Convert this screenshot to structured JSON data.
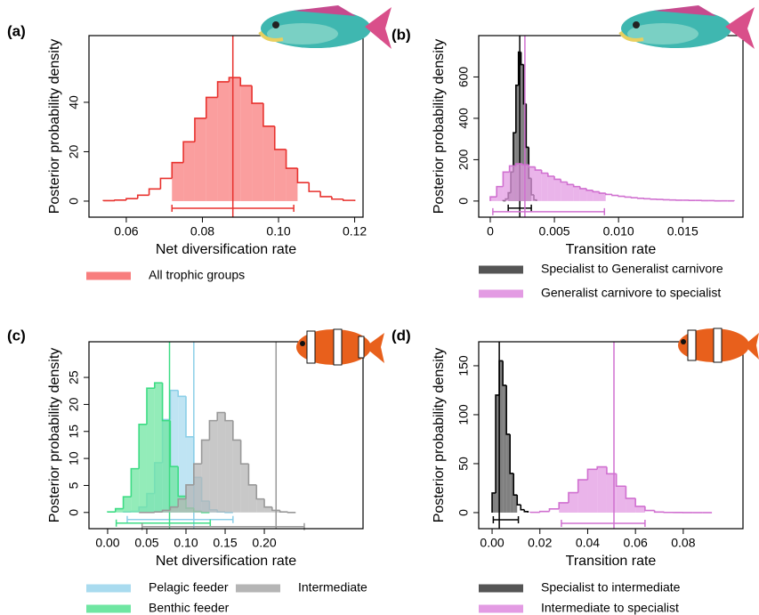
{
  "chart_data": [
    {
      "type": "histogram",
      "panel_label": "(a)",
      "xlabel": "Net diversification rate",
      "ylabel": "Posterior probability density",
      "xlim": [
        0.0502,
        0.1222
      ],
      "ylim": [
        -6.5,
        67
      ],
      "xticks": [
        0.06,
        0.08,
        {
          "value": 0.1,
          "label": "0.10"
        },
        0.12
      ],
      "yticks": [
        0,
        20,
        40
      ],
      "series": [
        {
          "name": "All trophic groups",
          "color": "#e8322e",
          "fill": "#f87e7e",
          "bins": [
            0.054,
            0.057,
            0.06,
            0.063,
            0.066,
            0.069,
            0.072,
            0.075,
            0.078,
            0.081,
            0.084,
            0.087,
            0.09,
            0.093,
            0.096,
            0.099,
            0.102,
            0.105,
            0.108,
            0.111,
            0.114,
            0.117,
            0.12
          ],
          "values": [
            0.2,
            0.4,
            1,
            2.4,
            4.9,
            9.2,
            15.6,
            24,
            33.5,
            42,
            48.3,
            50,
            46.7,
            39.6,
            30.3,
            20.9,
            13.3,
            7.5,
            3.9,
            1.8,
            0.8,
            0.3
          ],
          "interval": [
            0.072,
            0.104
          ],
          "estimate": 0.088
        }
      ]
    },
    {
      "type": "histogram",
      "panel_label": "(b)",
      "xlabel": "Transition rate",
      "ylabel": "Posterior probability density",
      "xlim": [
        -0.0009,
        0.0197
      ],
      "ylim": [
        -78,
        800
      ],
      "xticks": [
        0,
        0.005,
        {
          "value": 0.01,
          "label": "0.010"
        },
        0.015
      ],
      "yticks": [
        0,
        200,
        400,
        600
      ],
      "series": [
        {
          "name": "Specialist to Generalist carnivore",
          "color": "#000000",
          "fill": "#555555",
          "bins": [
            0.001,
            0.0012,
            0.0014,
            0.0016,
            0.0018,
            0.002,
            0.0022,
            0.0024,
            0.0026,
            0.0028,
            0.003,
            0.0032,
            0.0034,
            0.0036
          ],
          "values": [
            2,
            10,
            40,
            140,
            330,
            560,
            720,
            660,
            470,
            260,
            110,
            30,
            5
          ],
          "interval": [
            0.0014,
            0.0032
          ],
          "estimate": 0.0023
        },
        {
          "name": "Generalist carnivore to specialist",
          "color": "#d070d0",
          "fill": "#e39be3",
          "bins": [
            0,
            0.0005,
            0.001,
            0.0015,
            0.002,
            0.0025,
            0.003,
            0.0035,
            0.004,
            0.0045,
            0.005,
            0.0055,
            0.006,
            0.0065,
            0.007,
            0.0075,
            0.008,
            0.0085,
            0.009,
            0.0095,
            0.01,
            0.0105,
            0.011,
            0.0115,
            0.012,
            0.0125,
            0.013,
            0.0135,
            0.014,
            0.0145,
            0.015,
            0.0155,
            0.016,
            0.0165,
            0.017,
            0.0175,
            0.018,
            0.0185,
            0.019
          ],
          "values": [
            20,
            70,
            140,
            170,
            180,
            175,
            165,
            150,
            135,
            120,
            105,
            92,
            80,
            70,
            60,
            52,
            45,
            38,
            32,
            27,
            23,
            19,
            16,
            13,
            11,
            9,
            8,
            6,
            5,
            4,
            4,
            3,
            3,
            2,
            2,
            1,
            1,
            1
          ],
          "interval": [
            0.0002,
            0.0089
          ],
          "estimate": 0.0027
        }
      ]
    },
    {
      "type": "histogram",
      "panel_label": "(c)",
      "xlabel": "Net diversification rate",
      "ylabel": "Posterior probability density",
      "xlim": [
        -0.0238,
        0.326
      ],
      "ylim": [
        -3,
        31.6
      ],
      "xticks": [
        {
          "value": 0,
          "label": "0.00"
        },
        0.05,
        {
          "value": 0.1,
          "label": "0.10"
        },
        0.15,
        {
          "value": 0.2,
          "label": "0.20"
        }
      ],
      "yticks": [
        0,
        5,
        10,
        15,
        20,
        25
      ],
      "series": [
        {
          "name": "Pelagic feeder",
          "color": "#8ccfe8",
          "fill": "#a9dbef",
          "bins": [
            0.02,
            0.03,
            0.04,
            0.05,
            0.06,
            0.07,
            0.08,
            0.09,
            0.1,
            0.11,
            0.12,
            0.13,
            0.14,
            0.15,
            0.16
          ],
          "values": [
            0.1,
            0.2,
            1,
            3.5,
            9.2,
            17.2,
            22.6,
            21.5,
            14,
            6.5,
            2.1,
            0.5,
            0.1,
            0
          ],
          "interval": [
            0.025,
            0.16
          ],
          "estimate": 0.11
        },
        {
          "name": "Benthic feeder",
          "color": "#3ddc84",
          "fill": "#6fe6a2",
          "bins": [
            0,
            0.01,
            0.02,
            0.03,
            0.04,
            0.05,
            0.06,
            0.07,
            0.08,
            0.09,
            0.1,
            0.11,
            0.12,
            0.13
          ],
          "values": [
            0.1,
            0.7,
            2.9,
            8.1,
            16.3,
            23,
            24,
            17,
            8.5,
            3,
            0.8,
            0.2,
            0
          ],
          "interval": [
            0.011,
            0.131
          ],
          "estimate": 0.079
        },
        {
          "name": "Intermediate",
          "color": "#999999",
          "fill": "#b5b5b5",
          "bins": [
            0.04,
            0.05,
            0.06,
            0.07,
            0.08,
            0.09,
            0.1,
            0.11,
            0.12,
            0.13,
            0.14,
            0.15,
            0.16,
            0.17,
            0.18,
            0.19,
            0.2,
            0.21,
            0.22,
            0.23,
            0.24
          ],
          "values": [
            0,
            0,
            0.1,
            0.4,
            1,
            2.5,
            5.1,
            9,
            13.4,
            17,
            18.5,
            17,
            13.4,
            9,
            5.1,
            2.5,
            1,
            0.4,
            0.1,
            0
          ],
          "interval": [
            0.044,
            0.251
          ],
          "estimate": 0.215
        }
      ]
    },
    {
      "type": "histogram",
      "panel_label": "(d)",
      "xlabel": "Transition rate",
      "ylabel": "Posterior probability density",
      "xlim": [
        -0.0056,
        0.105
      ],
      "ylim": [
        -16.4,
        174.5
      ],
      "xticks": [
        {
          "value": 0,
          "label": "0.00"
        },
        0.02,
        0.04,
        0.06,
        0.08
      ],
      "yticks": [
        0,
        50,
        100,
        150
      ],
      "series": [
        {
          "name": "Specialist to intermediate",
          "color": "#000000",
          "fill": "#555555",
          "bins": [
            0,
            0.0015,
            0.003,
            0.0045,
            0.006,
            0.0075,
            0.009,
            0.0105,
            0.012,
            0.0135,
            0.015
          ],
          "values": [
            20,
            120,
            155,
            130,
            80,
            40,
            18,
            8,
            3,
            1
          ],
          "interval": [
            0.0005,
            0.011
          ],
          "estimate": 0.003
        },
        {
          "name": "Intermediate to specialist",
          "color": "#d070d0",
          "fill": "#e39be3",
          "bins": [
            0.016,
            0.02,
            0.024,
            0.028,
            0.032,
            0.036,
            0.04,
            0.044,
            0.048,
            0.052,
            0.056,
            0.06,
            0.064,
            0.068,
            0.072,
            0.076,
            0.08,
            0.084,
            0.088,
            0.092
          ],
          "values": [
            0.3,
            1.2,
            3.8,
            10,
            20.4,
            33.5,
            44.2,
            46.7,
            39.7,
            27,
            14.6,
            6.4,
            2.2,
            0.6,
            0.2,
            0.1,
            0,
            0,
            0
          ],
          "interval": [
            0.029,
            0.064
          ],
          "estimate": 0.051
        }
      ]
    }
  ]
}
